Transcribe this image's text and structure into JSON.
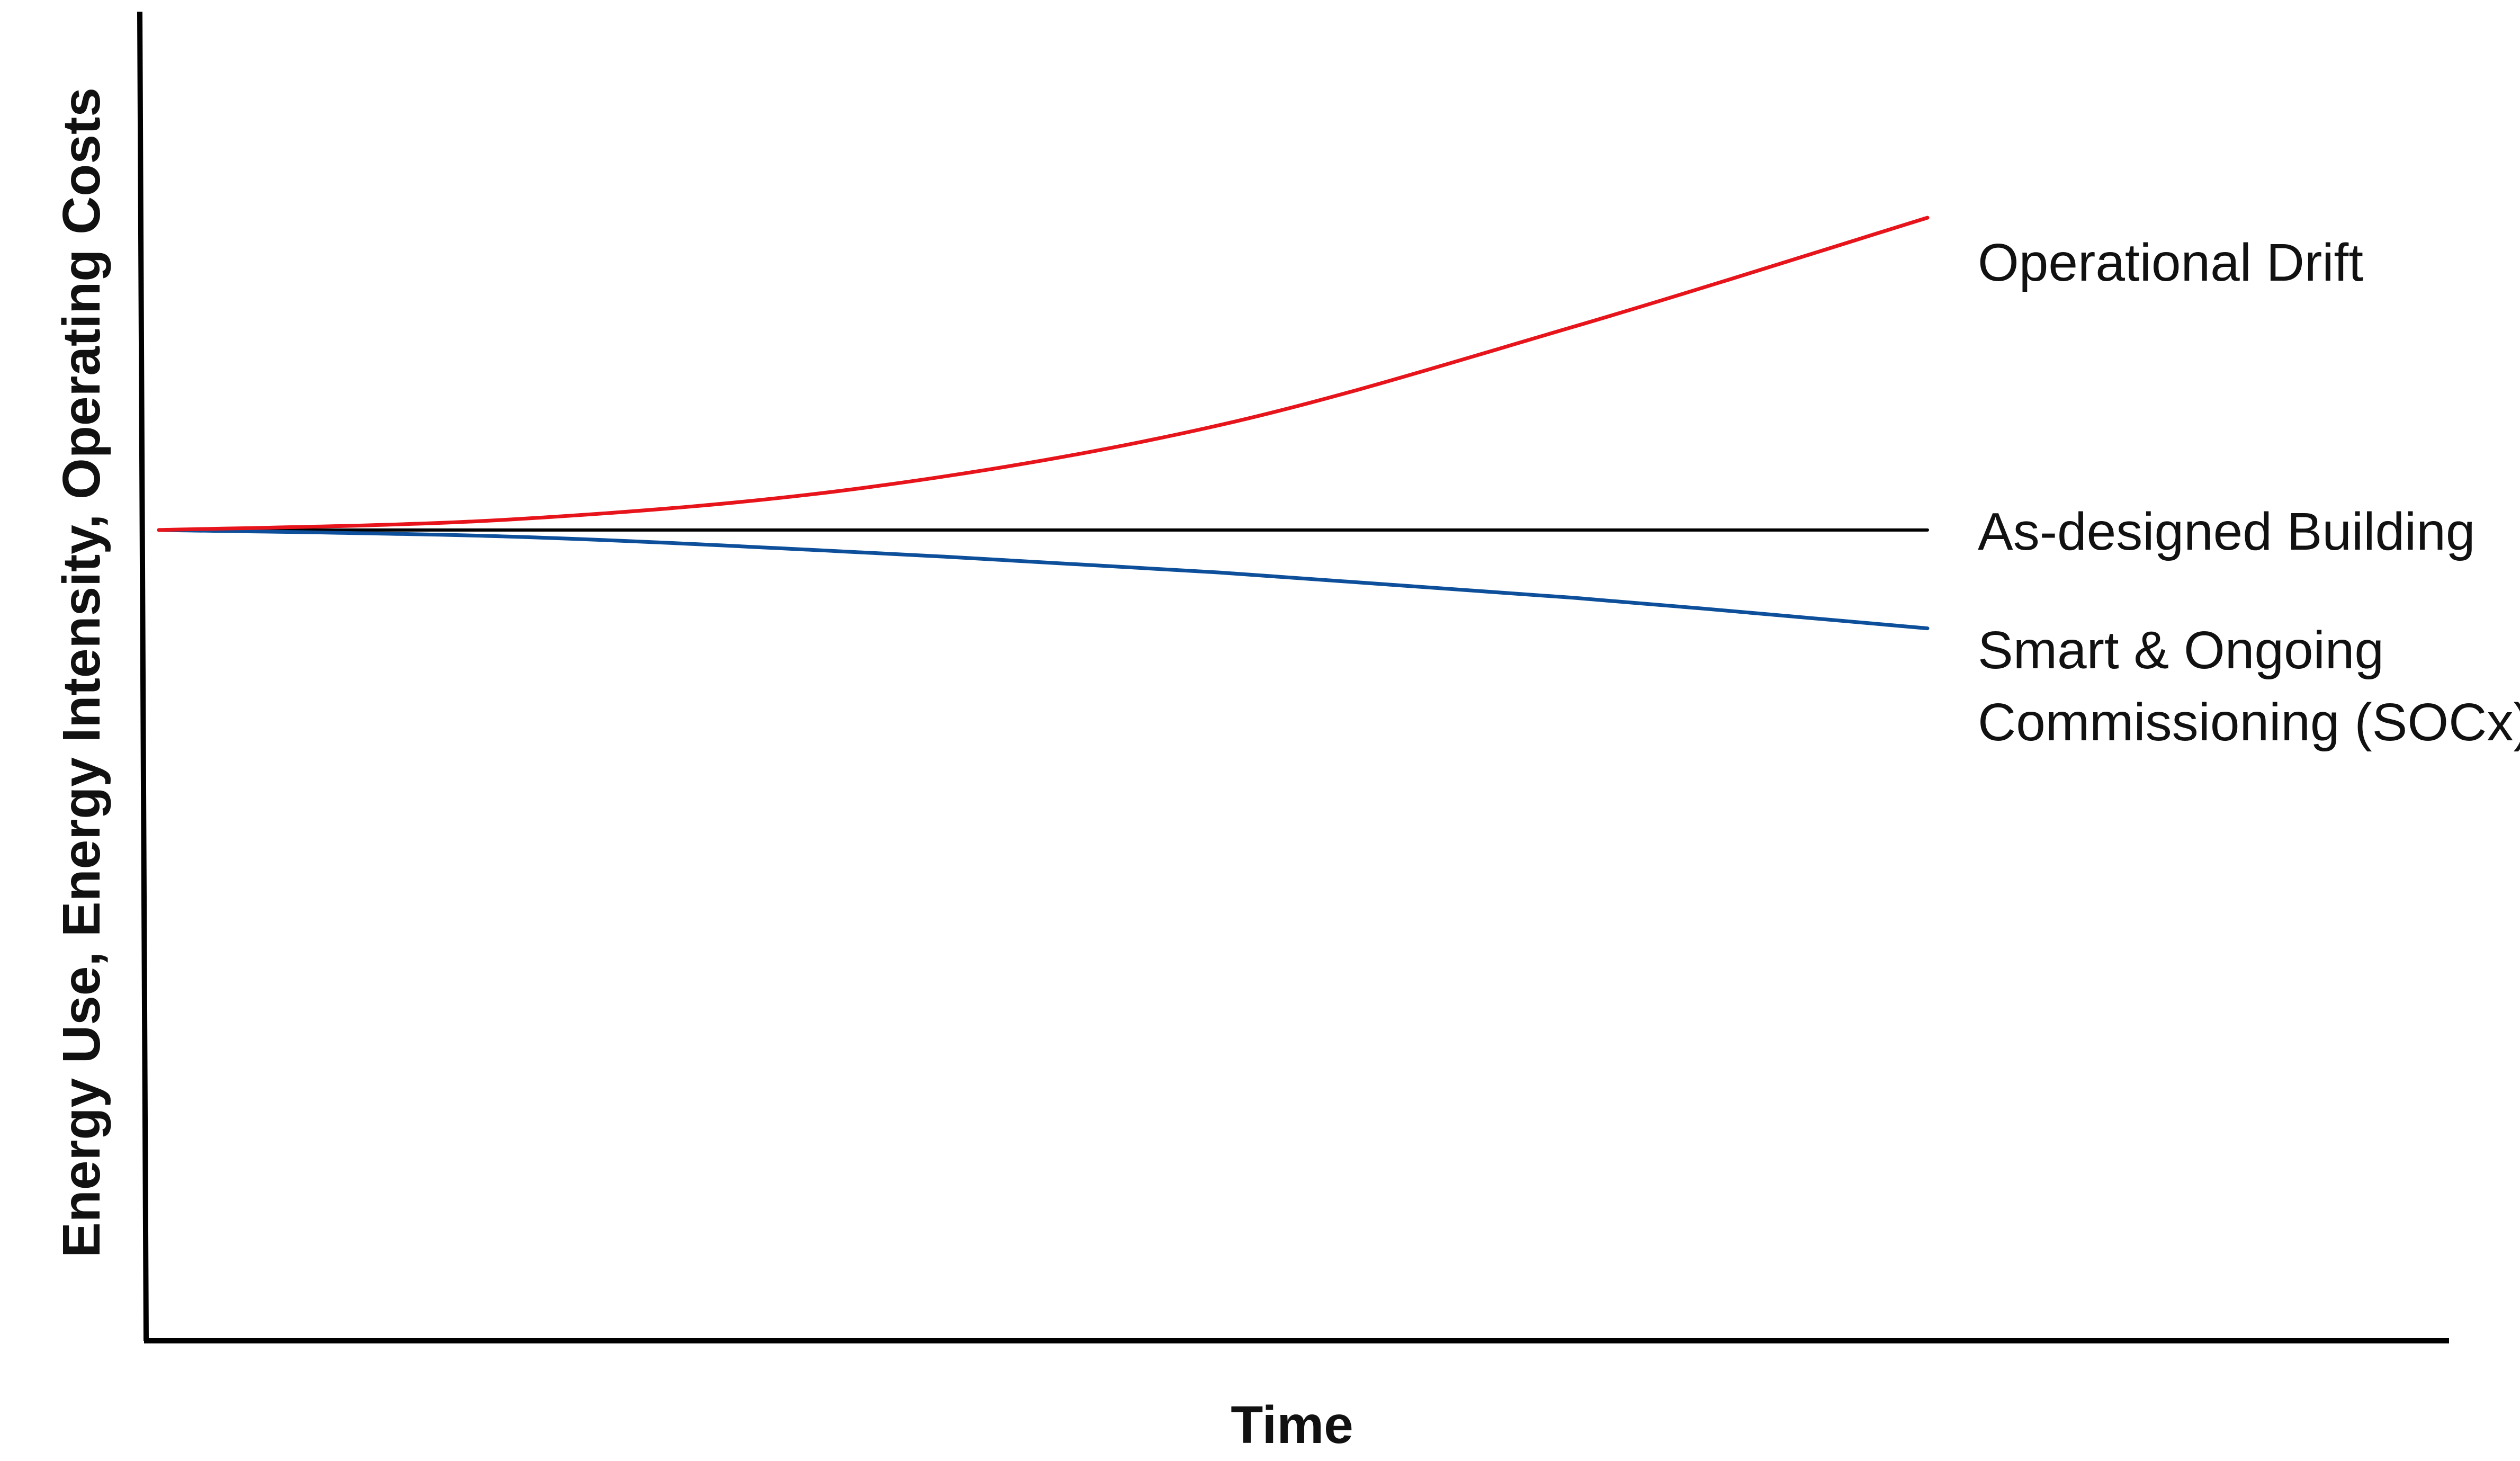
{
  "chart_data": {
    "type": "line",
    "title": "",
    "xlabel": "Time",
    "ylabel": "Energy Use, Energy Intensity, Operating Costs",
    "x_ticks": [],
    "y_ticks": [],
    "xlim": [
      0,
      100
    ],
    "ylim": [
      0,
      100
    ],
    "grid": false,
    "legend": "none",
    "series": [
      {
        "name": "Operational Drift",
        "label_lines": [
          "Operational Drift"
        ],
        "color": "#e8141b",
        "arrow": true,
        "x": [
          0,
          20,
          40,
          60,
          80,
          100
        ],
        "y": [
          61,
          61.8,
          64.2,
          68.9,
          76.3,
          84.5
        ]
      },
      {
        "name": "As-designed Building",
        "label_lines": [
          "As-designed Building"
        ],
        "color": "#000000",
        "arrow": false,
        "x": [
          0,
          100
        ],
        "y": [
          61,
          61
        ]
      },
      {
        "name": "Smart & Ongoing Commissioning (SOCx)",
        "label_lines": [
          "Smart & Ongoing",
          "Commissioning (SOCx)"
        ],
        "color": "#0d4f9a",
        "arrow": true,
        "x": [
          0,
          20,
          40,
          60,
          80,
          100
        ],
        "y": [
          61,
          60.5,
          59.3,
          57.8,
          55.9,
          53.6
        ]
      }
    ]
  }
}
